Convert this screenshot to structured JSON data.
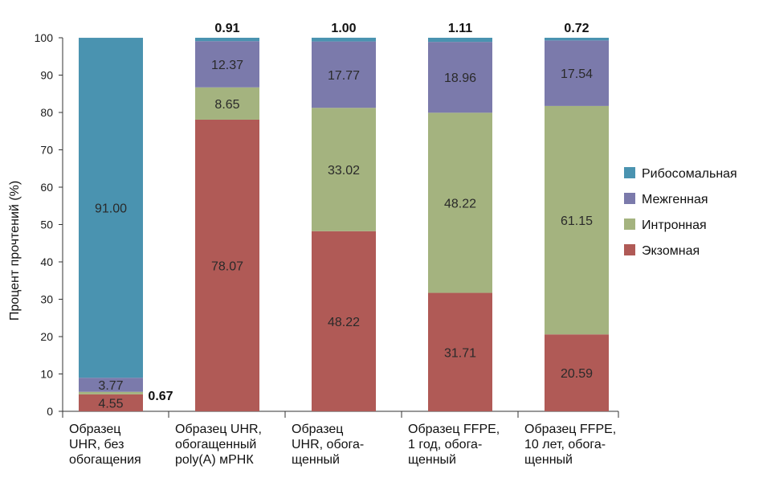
{
  "chart_data": {
    "type": "stacked-bar",
    "title": "",
    "xlabel": "",
    "ylabel": "Процент прочтений (%)",
    "ylim": [
      0,
      100
    ],
    "yticks": [
      0,
      10,
      20,
      30,
      40,
      50,
      60,
      70,
      80,
      90,
      100
    ],
    "legend_position": "right",
    "categories": [
      [
        "Образец",
        "UHR, без",
        "обогащения"
      ],
      [
        "Образец UHR,",
        "обогащенный",
        "poly(A) мРНК"
      ],
      [
        "Образец",
        "UHR, обога-",
        "щенный"
      ],
      [
        "Образец FFPE,",
        "1 год, обога-",
        "щенный"
      ],
      [
        "Образец FFPE,",
        "10 лет, обога-",
        "щенный"
      ]
    ],
    "series": [
      {
        "name": "Экзомная",
        "color": "#b05a56",
        "values": [
          4.55,
          78.07,
          48.22,
          31.71,
          20.59
        ],
        "labels": [
          "4.55",
          "78.07",
          "48.22",
          "31.71",
          "20.59"
        ]
      },
      {
        "name": "Интронная",
        "color": "#a4b37f",
        "values": [
          0.67,
          8.65,
          33.02,
          48.22,
          61.15
        ],
        "labels": [
          "0.67",
          "8.65",
          "33.02",
          "48.22",
          "61.15"
        ]
      },
      {
        "name": "Межгенная",
        "color": "#7b7aab",
        "values": [
          3.77,
          12.37,
          17.77,
          18.96,
          17.54
        ],
        "labels": [
          "3.77",
          "12.37",
          "17.77",
          "18.96",
          "17.54"
        ]
      },
      {
        "name": "Рибосомальная",
        "color": "#4a93b0",
        "values": [
          91.0,
          0.91,
          1.0,
          1.11,
          0.72
        ],
        "labels": [
          "91.00",
          "0.91",
          "1.00",
          "1.11",
          "0.72"
        ]
      }
    ],
    "legend_order": [
      "Рибосомальная",
      "Межгенная",
      "Интронная",
      "Экзомная"
    ]
  }
}
